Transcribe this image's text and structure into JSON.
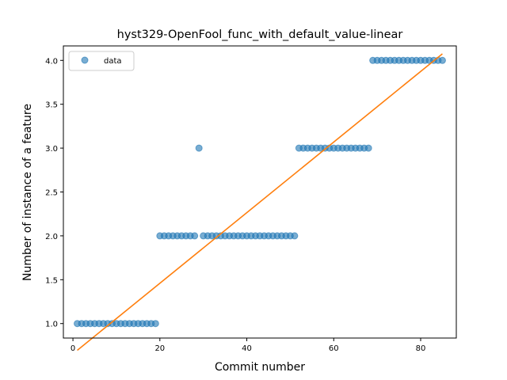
{
  "chart_data": {
    "type": "scatter",
    "title": "hyst329-OpenFool_func_with_default_value-linear",
    "xlabel": "Commit number",
    "ylabel": "Number of instance of a feature",
    "xlim": [
      -2.2,
      88.2
    ],
    "ylim": [
      0.835,
      4.165
    ],
    "xticks": [
      0,
      20,
      40,
      60,
      80
    ],
    "yticks": [
      1.0,
      1.5,
      2.0,
      2.5,
      3.0,
      3.5,
      4.0
    ],
    "xtick_labels": [
      "0",
      "20",
      "40",
      "60",
      "80"
    ],
    "ytick_labels": [
      "1.0",
      "1.5",
      "2.0",
      "2.5",
      "3.0",
      "3.5",
      "4.0"
    ],
    "grid": false,
    "legend": {
      "placement": "top-left",
      "entries": [
        "data"
      ]
    },
    "colors": {
      "data": "#1f77b4",
      "fit": "#ff7f0e"
    },
    "series": [
      {
        "name": "data",
        "kind": "scatter",
        "x": [
          1,
          2,
          3,
          4,
          5,
          6,
          7,
          8,
          9,
          10,
          11,
          12,
          13,
          14,
          15,
          16,
          17,
          18,
          19,
          20,
          21,
          22,
          23,
          24,
          25,
          26,
          27,
          28,
          29,
          30,
          31,
          32,
          33,
          34,
          35,
          36,
          37,
          38,
          39,
          40,
          41,
          42,
          43,
          44,
          45,
          46,
          47,
          48,
          49,
          50,
          51,
          52,
          53,
          54,
          55,
          56,
          57,
          58,
          59,
          60,
          61,
          62,
          63,
          64,
          65,
          66,
          67,
          68,
          69,
          70,
          71,
          72,
          73,
          74,
          75,
          76,
          77,
          78,
          79,
          80,
          81,
          82,
          83,
          84,
          85
        ],
        "y": [
          1,
          1,
          1,
          1,
          1,
          1,
          1,
          1,
          1,
          1,
          1,
          1,
          1,
          1,
          1,
          1,
          1,
          1,
          1,
          2,
          2,
          2,
          2,
          2,
          2,
          2,
          2,
          2,
          3,
          2,
          2,
          2,
          2,
          2,
          2,
          2,
          2,
          2,
          2,
          2,
          2,
          2,
          2,
          2,
          2,
          2,
          2,
          2,
          2,
          2,
          2,
          3,
          3,
          3,
          3,
          3,
          3,
          3,
          3,
          3,
          3,
          3,
          3,
          3,
          3,
          3,
          3,
          3,
          4,
          4,
          4,
          4,
          4,
          4,
          4,
          4,
          4,
          4,
          4,
          4,
          4,
          4,
          4,
          4,
          4
        ]
      },
      {
        "kind": "line",
        "x": [
          1,
          85
        ],
        "y": [
          0.695,
          4.075
        ]
      }
    ]
  }
}
